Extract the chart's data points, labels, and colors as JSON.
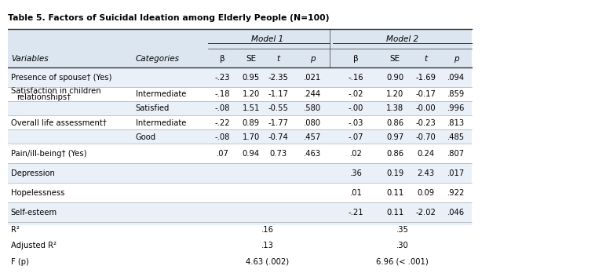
{
  "title": "Table 5. Factors of Suicidal Ideation among Elderly People (N=100)",
  "header_bg": "#dce6f1",
  "row_bg_light": "#eaf0f8",
  "row_bg_white": "#ffffff",
  "header_model1": "Model 1",
  "header_model2": "Model 2",
  "col_headers": [
    "Variables",
    "Categories",
    "β",
    "SE",
    "t",
    "p",
    "β",
    "SE",
    "t",
    "p"
  ],
  "rows": [
    {
      "var": "Presence of spouse† (Yes)",
      "cat": "",
      "m1_b": "-.23",
      "m1_se": "0.95",
      "m1_t": "-2.35",
      "m1_p": ".021",
      "m2_b": "-.16",
      "m2_se": "0.90",
      "m2_t": "-1.69",
      "m2_p": ".094"
    },
    {
      "var": "Satisfaction in children\nrelationships†",
      "cat": "Intermediate",
      "m1_b": "-.18",
      "m1_se": "1.20",
      "m1_t": "-1.17",
      "m1_p": ".244",
      "m2_b": "-.02",
      "m2_se": "1.20",
      "m2_t": "-0.17",
      "m2_p": ".859"
    },
    {
      "var": "",
      "cat": "Satisfied",
      "m1_b": "-.08",
      "m1_se": "1.51",
      "m1_t": "-0.55",
      "m1_p": ".580",
      "m2_b": "-.00",
      "m2_se": "1.38",
      "m2_t": "-0.00",
      "m2_p": ".996"
    },
    {
      "var": "Overall life assessment†",
      "cat": "Intermediate",
      "m1_b": "-.22",
      "m1_se": "0.89",
      "m1_t": "-1.77",
      "m1_p": ".080",
      "m2_b": "-.03",
      "m2_se": "0.86",
      "m2_t": "-0.23",
      "m2_p": ".813"
    },
    {
      "var": "",
      "cat": "Good",
      "m1_b": "-.08",
      "m1_se": "1.70",
      "m1_t": "-0.74",
      "m1_p": ".457",
      "m2_b": "-.07",
      "m2_se": "0.97",
      "m2_t": "-0.70",
      "m2_p": ".485"
    },
    {
      "var": "Pain/ill-being† (Yes)",
      "cat": "",
      "m1_b": ".07",
      "m1_se": "0.94",
      "m1_t": "0.73",
      "m1_p": ".463",
      "m2_b": ".02",
      "m2_se": "0.86",
      "m2_t": "0.24",
      "m2_p": ".807"
    },
    {
      "var": "Depression",
      "cat": "",
      "m1_b": "",
      "m1_se": "",
      "m1_t": "",
      "m1_p": "",
      "m2_b": ".36",
      "m2_se": "0.19",
      "m2_t": "2.43",
      "m2_p": ".017"
    },
    {
      "var": "Hopelessness",
      "cat": "",
      "m1_b": "",
      "m1_se": "",
      "m1_t": "",
      "m1_p": "",
      "m2_b": ".01",
      "m2_se": "0.11",
      "m2_t": "0.09",
      "m2_p": ".922"
    },
    {
      "var": "Self-esteem",
      "cat": "",
      "m1_b": "",
      "m1_se": "",
      "m1_t": "",
      "m1_p": "",
      "m2_b": "-.21",
      "m2_se": "0.11",
      "m2_t": "-2.02",
      "m2_p": ".046"
    }
  ],
  "footer": [
    {
      "label": "R²",
      "m1_val": ".16",
      "m2_val": ".35"
    },
    {
      "label": "Adjusted R²",
      "m1_val": ".13",
      "m2_val": ".30"
    },
    {
      "label": "F (p)",
      "m1_val": "4.63 (.002)",
      "m2_val": "6.96 (< .001)"
    }
  ],
  "font_size": 7.5,
  "title_font_size": 7.8
}
